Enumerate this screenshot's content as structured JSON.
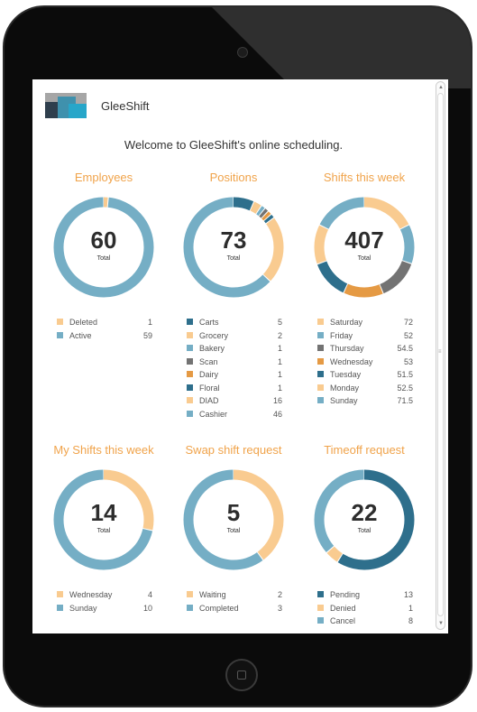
{
  "app": {
    "title": "GleeShift",
    "welcome": "Welcome to  GleeShift's online scheduling."
  },
  "colors": {
    "peach": "#f9cb90",
    "blue": "#75aec5",
    "teal": "#2e6f8c",
    "gray": "#737373",
    "orange": "#e59a44",
    "title": "#f0a34a"
  },
  "cards": [
    {
      "title": "Employees",
      "total": "60",
      "total_label": "Total",
      "items": [
        {
          "label": "Deleted",
          "value": "1",
          "color": "#f9cb90"
        },
        {
          "label": "Active",
          "value": "59",
          "color": "#75aec5"
        }
      ]
    },
    {
      "title": "Positions",
      "total": "73",
      "total_label": "Total",
      "items": [
        {
          "label": "Carts",
          "value": "5",
          "color": "#2e6f8c"
        },
        {
          "label": "Grocery",
          "value": "2",
          "color": "#f9cb90"
        },
        {
          "label": "Bakery",
          "value": "1",
          "color": "#75aec5"
        },
        {
          "label": "Scan",
          "value": "1",
          "color": "#737373"
        },
        {
          "label": "Dairy",
          "value": "1",
          "color": "#e59a44"
        },
        {
          "label": "Floral",
          "value": "1",
          "color": "#2e6f8c"
        },
        {
          "label": "DIAD",
          "value": "16",
          "color": "#f9cb90"
        },
        {
          "label": "Cashier",
          "value": "46",
          "color": "#75aec5"
        }
      ]
    },
    {
      "title": "Shifts this week",
      "total": "407",
      "total_label": "Total",
      "items": [
        {
          "label": "Saturday",
          "value": "72",
          "color": "#f9cb90"
        },
        {
          "label": "Friday",
          "value": "52",
          "color": "#75aec5"
        },
        {
          "label": "Thursday",
          "value": "54.5",
          "color": "#737373"
        },
        {
          "label": "Wednesday",
          "value": "53",
          "color": "#e59a44"
        },
        {
          "label": "Tuesday",
          "value": "51.5",
          "color": "#2e6f8c"
        },
        {
          "label": "Monday",
          "value": "52.5",
          "color": "#f9cb90"
        },
        {
          "label": "Sunday",
          "value": "71.5",
          "color": "#75aec5"
        }
      ]
    },
    {
      "title": "My Shifts this week",
      "total": "14",
      "total_label": "Total",
      "items": [
        {
          "label": "Wednesday",
          "value": "4",
          "color": "#f9cb90"
        },
        {
          "label": "Sunday",
          "value": "10",
          "color": "#75aec5"
        }
      ]
    },
    {
      "title": "Swap shift request",
      "total": "5",
      "total_label": "Total",
      "items": [
        {
          "label": "Waiting",
          "value": "2",
          "color": "#f9cb90"
        },
        {
          "label": "Completed",
          "value": "3",
          "color": "#75aec5"
        }
      ]
    },
    {
      "title": "Timeoff request",
      "total": "22",
      "total_label": "Total",
      "items": [
        {
          "label": "Pending",
          "value": "13",
          "color": "#2e6f8c"
        },
        {
          "label": "Denied",
          "value": "1",
          "color": "#f9cb90"
        },
        {
          "label": "Cancel",
          "value": "8",
          "color": "#75aec5"
        }
      ]
    }
  ]
}
